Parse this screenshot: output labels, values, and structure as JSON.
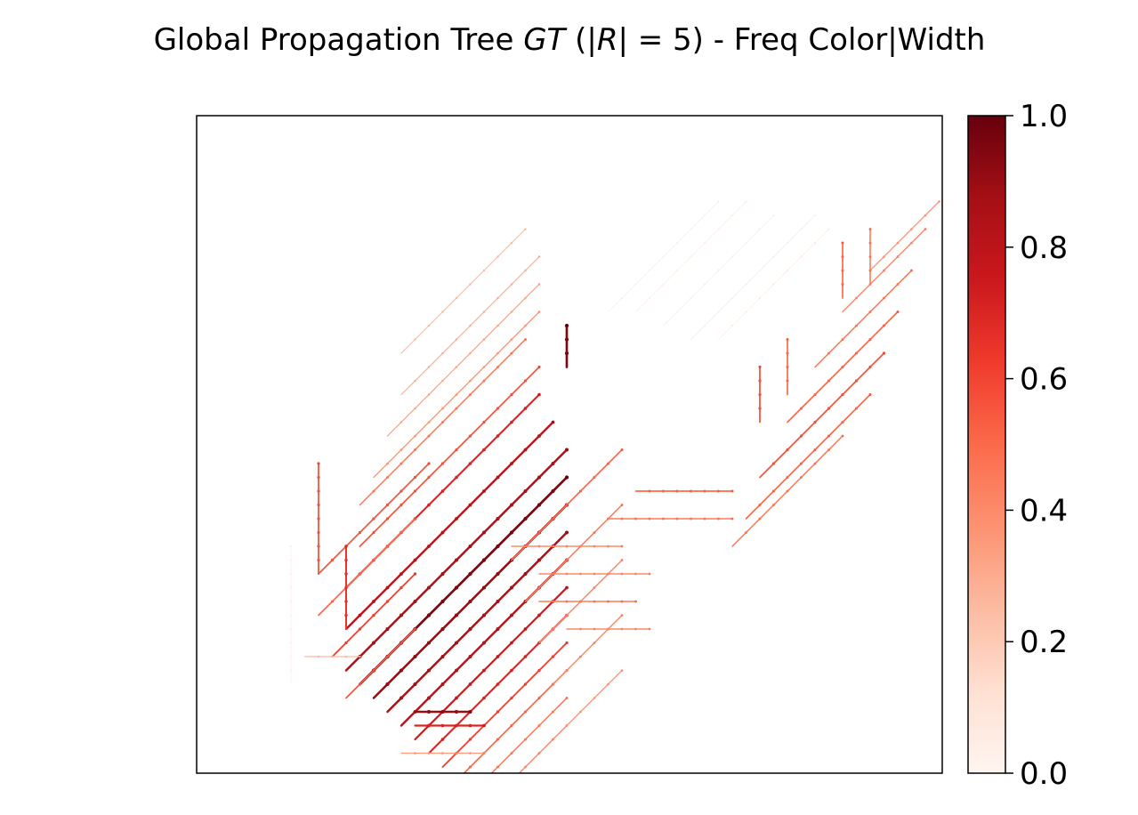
{
  "chart_data": {
    "type": "network",
    "title": {
      "prefix": "Global Propagation Tree ",
      "gt": "GT",
      "paren_open": " (|",
      "r": "R",
      "paren_close": "| =  5) - Freq Color|Width"
    },
    "x_ticks_visible": false,
    "y_ticks_visible": false,
    "grid": false,
    "colorbar": {
      "colormap": "Reds",
      "range": [
        0.0,
        1.0
      ],
      "ticks": [
        "0.0",
        "0.2",
        "0.4",
        "0.6",
        "0.8",
        "1.0"
      ],
      "placement": "right"
    },
    "colormap_stops": [
      "#fff5f0",
      "#fee0d2",
      "#fcbba1",
      "#fc9272",
      "#fb6a4a",
      "#ef3b2c",
      "#cb181d",
      "#a50f15",
      "#67000d"
    ],
    "diagonal_edges_approx": [
      {
        "x": 27,
        "y": 3,
        "len": 8,
        "freq": 0.05
      },
      {
        "x": 29,
        "y": 3,
        "len": 8,
        "freq": 0.05
      },
      {
        "x": 31,
        "y": 4,
        "len": 8,
        "freq": 0.06
      },
      {
        "x": 33,
        "y": 4,
        "len": 9,
        "freq": 0.07
      },
      {
        "x": 35,
        "y": 5,
        "len": 8,
        "freq": 0.08
      },
      {
        "x": 12,
        "y": 5,
        "len": 9,
        "freq": 0.25
      },
      {
        "x": 12,
        "y": 7,
        "len": 10,
        "freq": 0.28
      },
      {
        "x": 11,
        "y": 9,
        "len": 11,
        "freq": 0.3
      },
      {
        "x": 10,
        "y": 11,
        "len": 12,
        "freq": 0.35
      },
      {
        "x": 9,
        "y": 13,
        "len": 12,
        "freq": 0.45
      },
      {
        "x": 9,
        "y": 15,
        "len": 13,
        "freq": 0.55
      },
      {
        "x": 8,
        "y": 17,
        "len": 14,
        "freq": 0.7
      },
      {
        "x": 8,
        "y": 19,
        "len": 15,
        "freq": 0.8
      },
      {
        "x": 8,
        "y": 21,
        "len": 16,
        "freq": 0.85
      },
      {
        "x": 9,
        "y": 23,
        "len": 15,
        "freq": 0.95
      },
      {
        "x": 10,
        "y": 25,
        "len": 14,
        "freq": 0.9
      },
      {
        "x": 11,
        "y": 27,
        "len": 13,
        "freq": 0.85
      },
      {
        "x": 12,
        "y": 29,
        "len": 12,
        "freq": 0.82
      },
      {
        "x": 13,
        "y": 31,
        "len": 11,
        "freq": 0.75
      },
      {
        "x": 14,
        "y": 33,
        "len": 10,
        "freq": 0.7
      },
      {
        "x": 15,
        "y": 35,
        "len": 9,
        "freq": 0.6
      },
      {
        "x": 16,
        "y": 37,
        "len": 8,
        "freq": 0.5
      },
      {
        "x": 17,
        "y": 39,
        "len": 7,
        "freq": 0.45
      },
      {
        "x": 18,
        "y": 41,
        "len": 6,
        "freq": 0.4
      },
      {
        "x": 6,
        "y": 22,
        "len": 8,
        "freq": 0.55
      },
      {
        "x": 6,
        "y": 26,
        "len": 7,
        "freq": 0.5
      },
      {
        "x": 7,
        "y": 30,
        "len": 6,
        "freq": 0.6
      },
      {
        "x": 8,
        "y": 34,
        "len": 5,
        "freq": 0.55
      },
      {
        "x": 20,
        "y": 21,
        "len": 8,
        "freq": 0.5
      },
      {
        "x": 21,
        "y": 25,
        "len": 7,
        "freq": 0.45
      },
      {
        "x": 22,
        "y": 29,
        "len": 6,
        "freq": 0.4
      },
      {
        "x": 23,
        "y": 33,
        "len": 5,
        "freq": 0.4
      },
      {
        "x": 24,
        "y": 37,
        "len": 4,
        "freq": 0.35
      },
      {
        "x": 36,
        "y": 20,
        "len": 8,
        "freq": 0.45
      },
      {
        "x": 37,
        "y": 17,
        "len": 9,
        "freq": 0.5
      },
      {
        "x": 38,
        "y": 14,
        "len": 9,
        "freq": 0.55
      },
      {
        "x": 40,
        "y": 11,
        "len": 8,
        "freq": 0.5
      },
      {
        "x": 42,
        "y": 8,
        "len": 7,
        "freq": 0.45
      },
      {
        "x": 44,
        "y": 5,
        "len": 6,
        "freq": 0.4
      },
      {
        "x": 46,
        "y": 3,
        "len": 5,
        "freq": 0.35
      }
    ],
    "horizontal_edges_approx": [
      {
        "x": 13,
        "y": 40,
        "len": 4,
        "freq": 0.9
      },
      {
        "x": 13,
        "y": 41,
        "len": 5,
        "freq": 0.7
      },
      {
        "x": 20,
        "y": 28,
        "len": 8,
        "freq": 0.4
      },
      {
        "x": 22,
        "y": 30,
        "len": 8,
        "freq": 0.4
      },
      {
        "x": 22,
        "y": 32,
        "len": 7,
        "freq": 0.45
      },
      {
        "x": 24,
        "y": 34,
        "len": 6,
        "freq": 0.4
      },
      {
        "x": 27,
        "y": 26,
        "len": 9,
        "freq": 0.45
      },
      {
        "x": 29,
        "y": 24,
        "len": 7,
        "freq": 0.5
      },
      {
        "x": 5,
        "y": 36,
        "len": 4,
        "freq": 0.25
      },
      {
        "x": 12,
        "y": 43,
        "len": 6,
        "freq": 0.35
      }
    ],
    "vertical_edges_approx": [
      {
        "x": 6,
        "y": 22,
        "len": 8,
        "freq": 0.55
      },
      {
        "x": 8,
        "y": 28,
        "len": 6,
        "freq": 0.65
      },
      {
        "x": 24,
        "y": 12,
        "len": 3,
        "freq": 0.95
      },
      {
        "x": 38,
        "y": 15,
        "len": 4,
        "freq": 0.55
      },
      {
        "x": 40,
        "y": 13,
        "len": 4,
        "freq": 0.5
      },
      {
        "x": 44,
        "y": 6,
        "len": 4,
        "freq": 0.5
      },
      {
        "x": 46,
        "y": 5,
        "len": 4,
        "freq": 0.45
      },
      {
        "x": 4,
        "y": 28,
        "len": 10,
        "freq": 0.05
      }
    ]
  }
}
